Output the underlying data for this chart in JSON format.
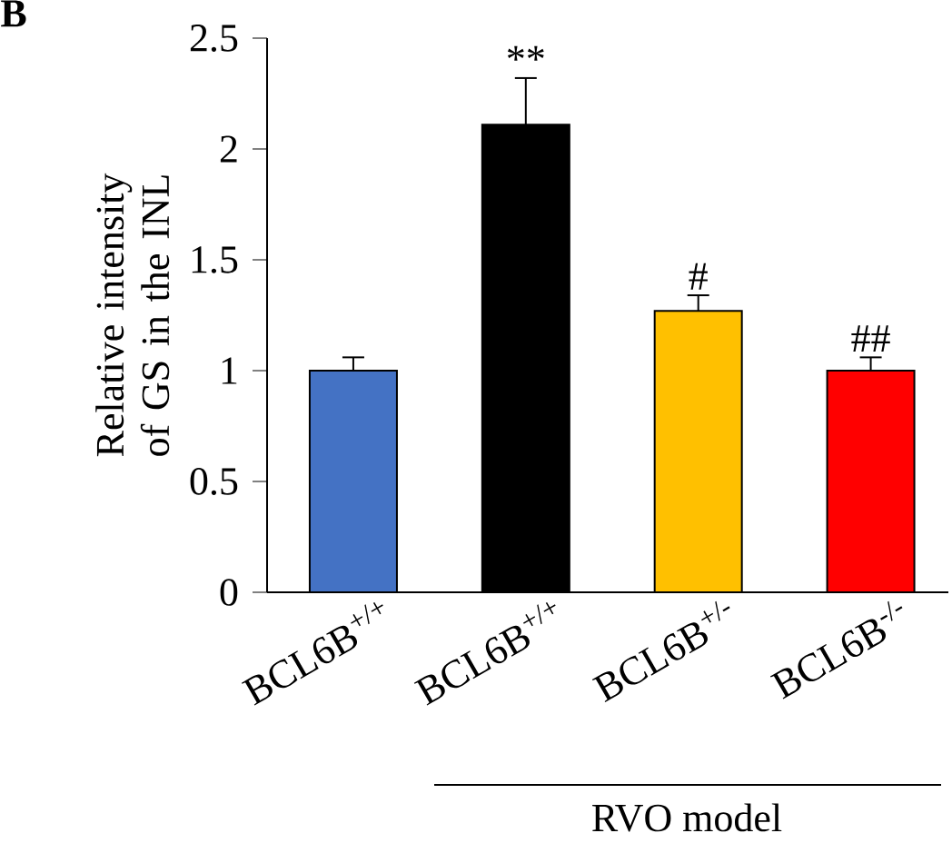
{
  "chart_data": {
    "type": "bar",
    "categories": [
      "BCL6B$^{+/+}$",
      "BCL6B$^{+/+}$",
      "BCL6B$^{+/-}$",
      "BCL6B$^{-/-}$"
    ],
    "values": [
      1.0,
      2.11,
      1.27,
      1.0
    ],
    "colors": [
      "#4472c4",
      "#000000",
      "#ffc000",
      "#ff0000"
    ],
    "errors": [
      [
        1.0,
        1.06
      ],
      [
        2.11,
        2.32
      ],
      [
        1.27,
        1.34
      ],
      [
        1.0,
        1.06
      ]
    ],
    "value_labels": [
      null,
      "**",
      "#",
      "##"
    ],
    "ylabel": "Relative intensity of GS in the INL",
    "ylim": [
      0,
      2.5
    ],
    "yticks": [
      0,
      0.5,
      1,
      1.5,
      2,
      2.5
    ],
    "annotations": [
      "B",
      "RVO model"
    ],
    "grid": false
  }
}
